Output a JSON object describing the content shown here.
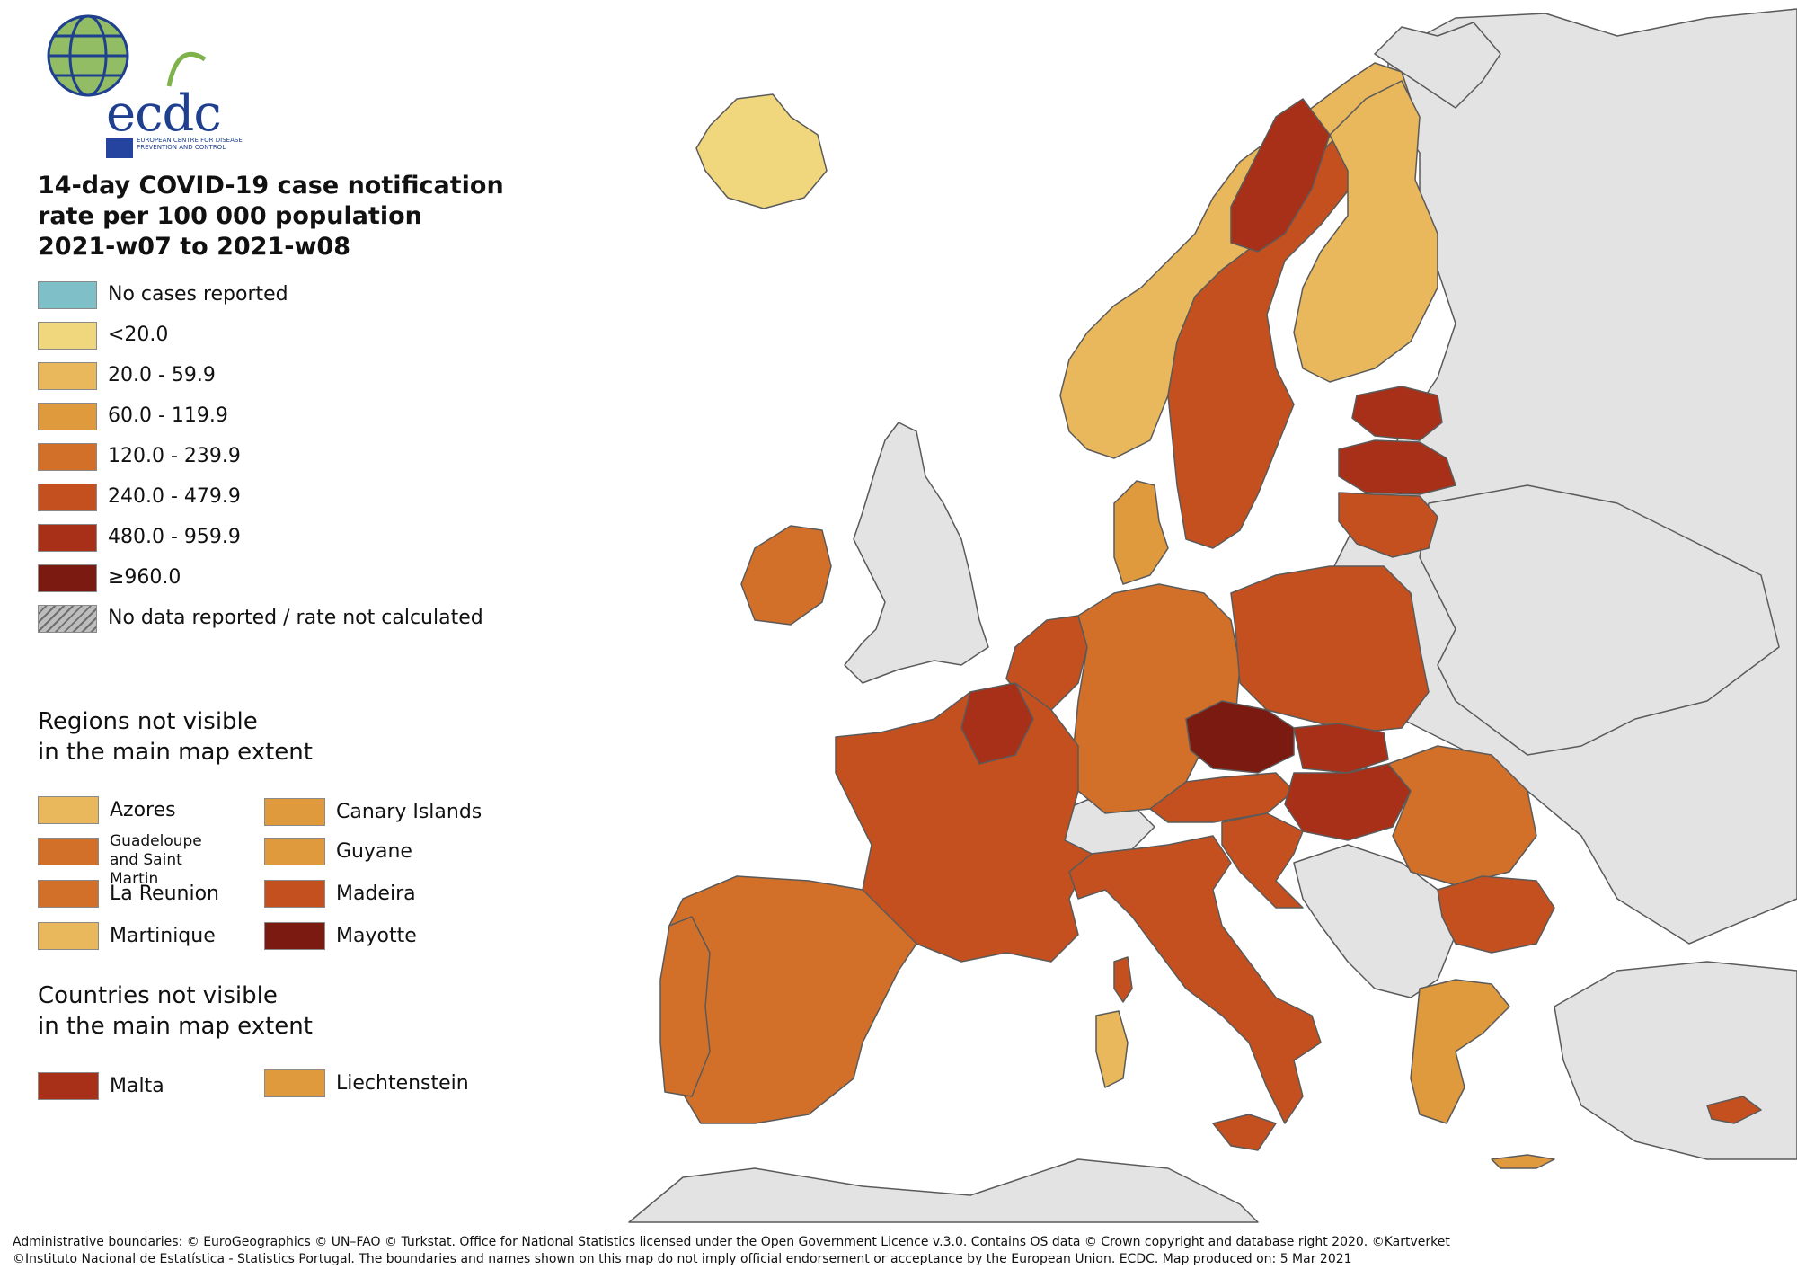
{
  "logo": {
    "text": "ecdc",
    "subtitle": "EUROPEAN CENTRE FOR DISEASE PREVENTION AND CONTROL"
  },
  "title": {
    "line1": "14-day COVID-19 case notification",
    "line2": "rate per 100 000 population",
    "line3": "2021-w07 to 2021-w08"
  },
  "legend": [
    {
      "label": "No cases reported",
      "color": "#7fbfc8"
    },
    {
      "label": "<20.0",
      "color": "#f0d67c"
    },
    {
      "label": "20.0 - 59.9",
      "color": "#e9b75c"
    },
    {
      "label": "60.0 - 119.9",
      "color": "#e09a3e"
    },
    {
      "label": "120.0 - 239.9",
      "color": "#d2702a"
    },
    {
      "label": "240.0 - 479.9",
      "color": "#c5501f"
    },
    {
      "label": "480.0 - 959.9",
      "color": "#a83019"
    },
    {
      "label": "≥960.0",
      "color": "#7a1a10"
    },
    {
      "label": "No data reported / rate not calculated",
      "color": "hatch"
    }
  ],
  "regions_header": {
    "line1": "Regions not visible",
    "line2": "in the main map extent"
  },
  "regions": [
    {
      "label": "Azores",
      "color": "#e9b75c"
    },
    {
      "label": "Canary Islands",
      "color": "#e09a3e"
    },
    {
      "label": "Guadeloupe\nand Saint Martin",
      "color": "#d2702a"
    },
    {
      "label": "Guyane",
      "color": "#e09a3e"
    },
    {
      "label": "La Reunion",
      "color": "#d2702a"
    },
    {
      "label": "Madeira",
      "color": "#c5501f"
    },
    {
      "label": "Martinique",
      "color": "#e9b75c"
    },
    {
      "label": "Mayotte",
      "color": "#7a1a10"
    }
  ],
  "countries_header": {
    "line1": "Countries not visible",
    "line2": "in the main map extent"
  },
  "countries": [
    {
      "label": "Malta",
      "color": "#a83019"
    },
    {
      "label": "Liechtenstein",
      "color": "#e09a3e"
    }
  ],
  "credits": {
    "line1": "Administrative boundaries: © EuroGeographics © UN–FAO © Turkstat. Office for National Statistics licensed under the Open Government Licence v.3.0. Contains OS data © Crown copyright and database right 2020. ©Kartverket",
    "line2": "©Instituto Nacional de Estatística - Statistics Portugal. The boundaries and names shown on this map do not imply official endorsement or acceptance by the European Union. ECDC. Map produced on: 5 Mar 2021"
  },
  "map_colors": {
    "non_eu": "#e3e3e3",
    "border": "#5a5a5a",
    "sea": "#ffffff"
  }
}
